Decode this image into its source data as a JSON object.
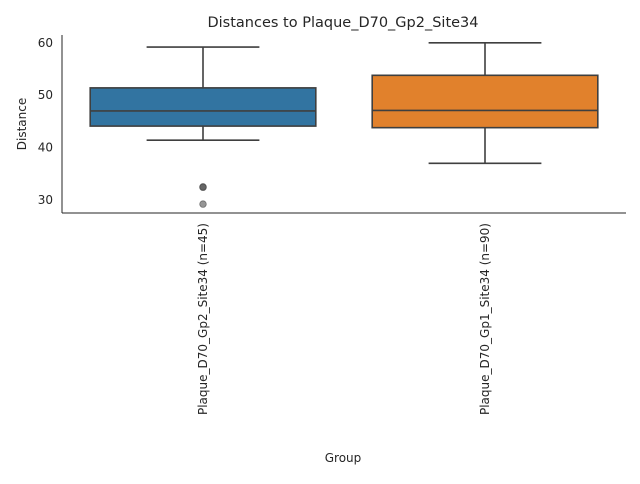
{
  "chart_data": {
    "type": "box",
    "title": "Distances to Plaque_D70_Gp2_Site34",
    "xlabel": "Group",
    "ylabel": "Distance",
    "ylim": [
      27.5,
      61.5
    ],
    "yticks": [
      30,
      40,
      50,
      60
    ],
    "grid": false,
    "legend": "none",
    "categories": [
      "Plaque_D70_Gp2_Site34 (n=45)",
      "Plaque_D70_Gp1_Site34 (n=90)"
    ],
    "boxes": [
      {
        "category": "Plaque_D70_Gp2_Site34 (n=45)",
        "whisker_low": 41.4,
        "q1": 44.1,
        "median": 47.0,
        "q3": 51.4,
        "whisker_high": 59.2,
        "outliers": [
          32.5,
          32.4,
          29.2
        ],
        "color": "#3274a1"
      },
      {
        "category": "Plaque_D70_Gp1_Site34 (n=90)",
        "whisker_low": 37.0,
        "q1": 43.8,
        "median": 47.1,
        "q3": 53.8,
        "whisker_high": 60.0,
        "outliers": [],
        "color": "#e1812c"
      }
    ]
  }
}
